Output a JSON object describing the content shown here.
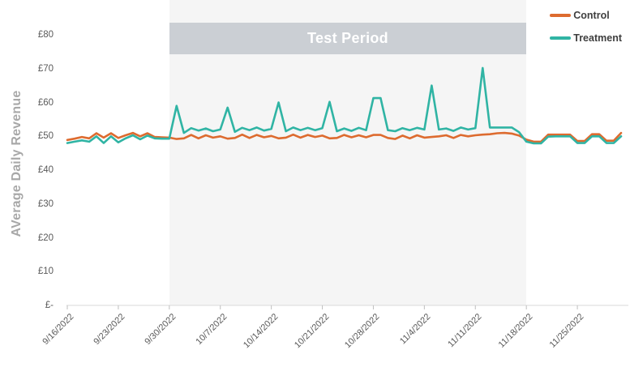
{
  "colors": {
    "background": "#ffffff",
    "test_shade": "#f5f5f5",
    "banner": "#cbcfd4",
    "axis_line": "#d9d9d9",
    "tick_mark": "#bfbfbf",
    "tick_text": "#595959",
    "axis_title_text": "#a8a8a8",
    "control": "#dd6b2f",
    "treatment": "#30b4a4"
  },
  "chart_data": {
    "type": "line",
    "title": "",
    "xlabel": "",
    "ylabel": "AVerage Daily Revenue",
    "currency": "GBP",
    "frequency": "daily",
    "start_date": "9/16/2022",
    "end_date": "12/1/2022",
    "ylim": [
      0,
      80
    ],
    "grid": false,
    "legend_position": "top-right",
    "y_tick_labels": [
      "£-",
      "£10",
      "£20",
      "£30",
      "£40",
      "£50",
      "£60",
      "£70",
      "£80"
    ],
    "x_tick_labels": [
      "9/16/2022",
      "9/23/2022",
      "9/30/2022",
      "10/7/2022",
      "10/14/2022",
      "10/21/2022",
      "10/28/2022",
      "11/4/2022",
      "11/11/2022",
      "11/18/2022",
      "11/25/2022"
    ],
    "x_tick_indices": [
      0,
      7,
      14,
      21,
      28,
      35,
      42,
      49,
      56,
      63,
      70
    ],
    "test_period": {
      "label": "Test Period",
      "start_date": "9/30/2022",
      "end_date": "11/18/2022",
      "start_index": 14,
      "end_index": 63
    },
    "series": [
      {
        "name": "Control",
        "color": "#dd6b2f",
        "values": [
          48.9,
          49.3,
          49.8,
          49.4,
          50.9,
          49.6,
          50.9,
          49.5,
          50.3,
          51.0,
          50.0,
          50.9,
          49.8,
          49.7,
          49.6,
          49.2,
          49.4,
          50.4,
          49.4,
          50.3,
          49.6,
          50.0,
          49.3,
          49.5,
          50.5,
          49.5,
          50.4,
          49.7,
          50.1,
          49.4,
          49.6,
          50.5,
          49.6,
          50.4,
          49.8,
          50.2,
          49.4,
          49.5,
          50.4,
          49.7,
          50.3,
          49.7,
          50.4,
          50.4,
          49.5,
          49.2,
          50.2,
          49.4,
          50.3,
          49.6,
          49.8,
          50.0,
          50.3,
          49.5,
          50.4,
          50.0,
          50.3,
          50.5,
          50.6,
          50.9,
          51.0,
          50.8,
          50.2,
          49.0,
          48.4,
          48.4,
          50.5,
          50.5,
          50.5,
          50.5,
          48.6,
          48.6,
          50.6,
          50.6,
          48.7,
          48.7,
          51.0
        ]
      },
      {
        "name": "Treatment",
        "color": "#30b4a4",
        "values": [
          48.0,
          48.4,
          48.8,
          48.4,
          50.0,
          48.0,
          50.0,
          48.2,
          49.4,
          50.3,
          49.1,
          50.2,
          49.4,
          49.3,
          49.3,
          59.0,
          51.0,
          52.4,
          51.7,
          52.3,
          51.5,
          52.0,
          58.5,
          51.3,
          52.5,
          51.8,
          52.6,
          51.7,
          52.2,
          60.0,
          51.5,
          52.6,
          51.8,
          52.5,
          51.8,
          52.4,
          60.2,
          51.5,
          52.3,
          51.6,
          52.5,
          51.8,
          61.3,
          61.3,
          51.8,
          51.5,
          52.4,
          51.8,
          52.5,
          52.0,
          65.0,
          52.0,
          52.3,
          51.6,
          52.6,
          52.0,
          52.4,
          70.2,
          52.6,
          52.6,
          52.6,
          52.6,
          51.2,
          48.4,
          47.9,
          47.9,
          49.9,
          50.0,
          50.0,
          50.0,
          48.0,
          48.0,
          50.0,
          50.0,
          48.0,
          48.0,
          50.0
        ]
      }
    ]
  }
}
